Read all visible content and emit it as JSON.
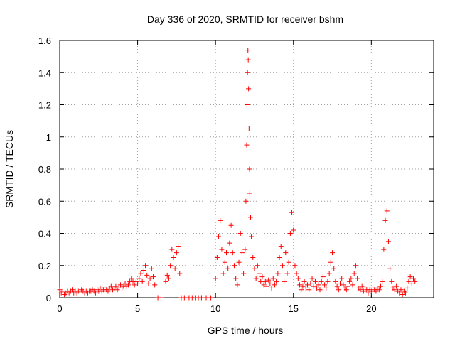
{
  "chart_data": {
    "type": "scatter",
    "title": "Day 336 of 2020, SRMTID for receiver bshm",
    "xlabel": "GPS time / hours",
    "ylabel": "SRMTID / TECUs",
    "xlim": [
      0,
      24
    ],
    "ylim": [
      0,
      1.6
    ],
    "xticks": [
      0,
      5,
      10,
      15,
      20
    ],
    "yticks": [
      0,
      0.2,
      0.4,
      0.6,
      0.8,
      1,
      1.2,
      1.4,
      1.6
    ],
    "xtick_labels": [
      "0",
      "5",
      "10",
      "15",
      "20"
    ],
    "ytick_labels": [
      "0",
      "0.2",
      "0.4",
      "0.6",
      "0.8",
      "1",
      "1.2",
      "1.4",
      "1.6"
    ],
    "grid": true,
    "marker": "plus",
    "color": "#ff0000",
    "series": [
      {
        "points": [
          [
            0.0,
            0.05
          ],
          [
            0.1,
            0.03
          ],
          [
            0.2,
            0.04
          ],
          [
            0.3,
            0.02
          ],
          [
            0.4,
            0.03
          ],
          [
            0.5,
            0.04
          ],
          [
            0.6,
            0.03
          ],
          [
            0.7,
            0.04
          ],
          [
            0.8,
            0.05
          ],
          [
            0.9,
            0.03
          ],
          [
            1.0,
            0.04
          ],
          [
            1.1,
            0.03
          ],
          [
            1.2,
            0.04
          ],
          [
            1.3,
            0.03
          ],
          [
            1.4,
            0.05
          ],
          [
            1.5,
            0.04
          ],
          [
            1.6,
            0.03
          ],
          [
            1.7,
            0.04
          ],
          [
            1.8,
            0.03
          ],
          [
            1.9,
            0.04
          ],
          [
            2.0,
            0.04
          ],
          [
            2.1,
            0.05
          ],
          [
            2.2,
            0.04
          ],
          [
            2.3,
            0.03
          ],
          [
            2.4,
            0.05
          ],
          [
            2.5,
            0.04
          ],
          [
            2.6,
            0.06
          ],
          [
            2.7,
            0.04
          ],
          [
            2.8,
            0.05
          ],
          [
            2.9,
            0.06
          ],
          [
            3.0,
            0.05
          ],
          [
            3.1,
            0.04
          ],
          [
            3.2,
            0.06
          ],
          [
            3.3,
            0.07
          ],
          [
            3.4,
            0.05
          ],
          [
            3.5,
            0.06
          ],
          [
            3.6,
            0.07
          ],
          [
            3.7,
            0.05
          ],
          [
            3.8,
            0.06
          ],
          [
            3.9,
            0.08
          ],
          [
            4.0,
            0.06
          ],
          [
            4.1,
            0.07
          ],
          [
            4.2,
            0.09
          ],
          [
            4.3,
            0.07
          ],
          [
            4.4,
            0.08
          ],
          [
            4.5,
            0.1
          ],
          [
            4.6,
            0.12
          ],
          [
            4.7,
            0.1
          ],
          [
            4.8,
            0.08
          ],
          [
            4.9,
            0.1
          ],
          [
            5.0,
            0.09
          ],
          [
            5.1,
            0.12
          ],
          [
            5.2,
            0.15
          ],
          [
            5.3,
            0.1
          ],
          [
            5.4,
            0.17
          ],
          [
            5.5,
            0.2
          ],
          [
            5.6,
            0.14
          ],
          [
            5.7,
            0.09
          ],
          [
            5.8,
            0.12
          ],
          [
            5.9,
            0.18
          ],
          [
            6.0,
            0.13
          ],
          [
            6.1,
            0.08
          ],
          [
            6.3,
            0.0
          ],
          [
            6.5,
            0.0
          ],
          [
            6.8,
            0.1
          ],
          [
            6.9,
            0.14
          ],
          [
            7.0,
            0.12
          ],
          [
            7.1,
            0.2
          ],
          [
            7.2,
            0.3
          ],
          [
            7.3,
            0.25
          ],
          [
            7.4,
            0.18
          ],
          [
            7.5,
            0.28
          ],
          [
            7.6,
            0.32
          ],
          [
            7.7,
            0.15
          ],
          [
            7.8,
            0.0
          ],
          [
            8.0,
            0.0
          ],
          [
            8.3,
            0.0
          ],
          [
            8.5,
            0.0
          ],
          [
            8.7,
            0.0
          ],
          [
            8.9,
            0.0
          ],
          [
            9.1,
            0.0
          ],
          [
            9.4,
            0.0
          ],
          [
            9.7,
            0.0
          ],
          [
            10.0,
            0.12
          ],
          [
            10.1,
            0.25
          ],
          [
            10.2,
            0.38
          ],
          [
            10.3,
            0.48
          ],
          [
            10.4,
            0.3
          ],
          [
            10.5,
            0.15
          ],
          [
            10.6,
            0.22
          ],
          [
            10.7,
            0.28
          ],
          [
            10.8,
            0.18
          ],
          [
            10.9,
            0.34
          ],
          [
            11.0,
            0.45
          ],
          [
            11.1,
            0.28
          ],
          [
            11.2,
            0.2
          ],
          [
            11.3,
            0.12
          ],
          [
            11.4,
            0.08
          ],
          [
            11.5,
            0.22
          ],
          [
            11.6,
            0.4
          ],
          [
            11.7,
            0.28
          ],
          [
            11.8,
            0.15
          ],
          [
            11.9,
            0.3
          ],
          [
            11.95,
            0.6
          ],
          [
            12.0,
            0.95
          ],
          [
            12.02,
            1.2
          ],
          [
            12.05,
            1.4
          ],
          [
            12.08,
            1.54
          ],
          [
            12.1,
            1.48
          ],
          [
            12.12,
            1.3
          ],
          [
            12.15,
            1.05
          ],
          [
            12.18,
            0.8
          ],
          [
            12.2,
            0.65
          ],
          [
            12.25,
            0.5
          ],
          [
            12.3,
            0.38
          ],
          [
            12.4,
            0.25
          ],
          [
            12.5,
            0.18
          ],
          [
            12.6,
            0.12
          ],
          [
            12.7,
            0.2
          ],
          [
            12.8,
            0.15
          ],
          [
            12.9,
            0.1
          ],
          [
            13.0,
            0.13
          ],
          [
            13.1,
            0.08
          ],
          [
            13.2,
            0.1
          ],
          [
            13.3,
            0.07
          ],
          [
            13.4,
            0.11
          ],
          [
            13.5,
            0.09
          ],
          [
            13.6,
            0.06
          ],
          [
            13.7,
            0.12
          ],
          [
            13.8,
            0.08
          ],
          [
            13.9,
            0.1
          ],
          [
            14.0,
            0.15
          ],
          [
            14.1,
            0.25
          ],
          [
            14.2,
            0.32
          ],
          [
            14.3,
            0.2
          ],
          [
            14.4,
            0.1
          ],
          [
            14.5,
            0.28
          ],
          [
            14.6,
            0.15
          ],
          [
            14.7,
            0.22
          ],
          [
            14.8,
            0.4
          ],
          [
            14.9,
            0.53
          ],
          [
            15.0,
            0.42
          ],
          [
            15.1,
            0.2
          ],
          [
            15.2,
            0.15
          ],
          [
            15.3,
            0.12
          ],
          [
            15.4,
            0.08
          ],
          [
            15.5,
            0.05
          ],
          [
            15.6,
            0.07
          ],
          [
            15.7,
            0.1
          ],
          [
            15.8,
            0.06
          ],
          [
            15.9,
            0.08
          ],
          [
            16.0,
            0.05
          ],
          [
            16.1,
            0.09
          ],
          [
            16.2,
            0.12
          ],
          [
            16.3,
            0.07
          ],
          [
            16.4,
            0.1
          ],
          [
            16.5,
            0.06
          ],
          [
            16.6,
            0.08
          ],
          [
            16.7,
            0.05
          ],
          [
            16.8,
            0.1
          ],
          [
            16.9,
            0.13
          ],
          [
            17.0,
            0.08
          ],
          [
            17.1,
            0.06
          ],
          [
            17.2,
            0.1
          ],
          [
            17.3,
            0.15
          ],
          [
            17.4,
            0.22
          ],
          [
            17.5,
            0.28
          ],
          [
            17.6,
            0.18
          ],
          [
            17.7,
            0.1
          ],
          [
            17.8,
            0.07
          ],
          [
            17.9,
            0.05
          ],
          [
            18.0,
            0.09
          ],
          [
            18.1,
            0.12
          ],
          [
            18.2,
            0.08
          ],
          [
            18.3,
            0.06
          ],
          [
            18.4,
            0.05
          ],
          [
            18.5,
            0.07
          ],
          [
            18.6,
            0.1
          ],
          [
            18.7,
            0.12
          ],
          [
            18.8,
            0.08
          ],
          [
            18.9,
            0.15
          ],
          [
            19.0,
            0.2
          ],
          [
            19.1,
            0.12
          ],
          [
            19.2,
            0.06
          ],
          [
            19.3,
            0.05
          ],
          [
            19.4,
            0.07
          ],
          [
            19.5,
            0.04
          ],
          [
            19.6,
            0.06
          ],
          [
            19.7,
            0.05
          ],
          [
            19.8,
            0.03
          ],
          [
            19.9,
            0.05
          ],
          [
            20.0,
            0.04
          ],
          [
            20.1,
            0.06
          ],
          [
            20.2,
            0.05
          ],
          [
            20.3,
            0.04
          ],
          [
            20.4,
            0.06
          ],
          [
            20.5,
            0.05
          ],
          [
            20.6,
            0.07
          ],
          [
            20.7,
            0.1
          ],
          [
            20.8,
            0.3
          ],
          [
            20.9,
            0.48
          ],
          [
            21.0,
            0.54
          ],
          [
            21.1,
            0.35
          ],
          [
            21.2,
            0.18
          ],
          [
            21.3,
            0.1
          ],
          [
            21.4,
            0.06
          ],
          [
            21.5,
            0.05
          ],
          [
            21.6,
            0.07
          ],
          [
            21.7,
            0.04
          ],
          [
            21.8,
            0.03
          ],
          [
            21.9,
            0.05
          ],
          [
            22.0,
            0.02
          ],
          [
            22.1,
            0.04
          ],
          [
            22.2,
            0.03
          ],
          [
            22.3,
            0.06
          ],
          [
            22.4,
            0.1
          ],
          [
            22.5,
            0.13
          ],
          [
            22.6,
            0.09
          ],
          [
            22.7,
            0.12
          ],
          [
            22.8,
            0.1
          ]
        ]
      }
    ]
  }
}
